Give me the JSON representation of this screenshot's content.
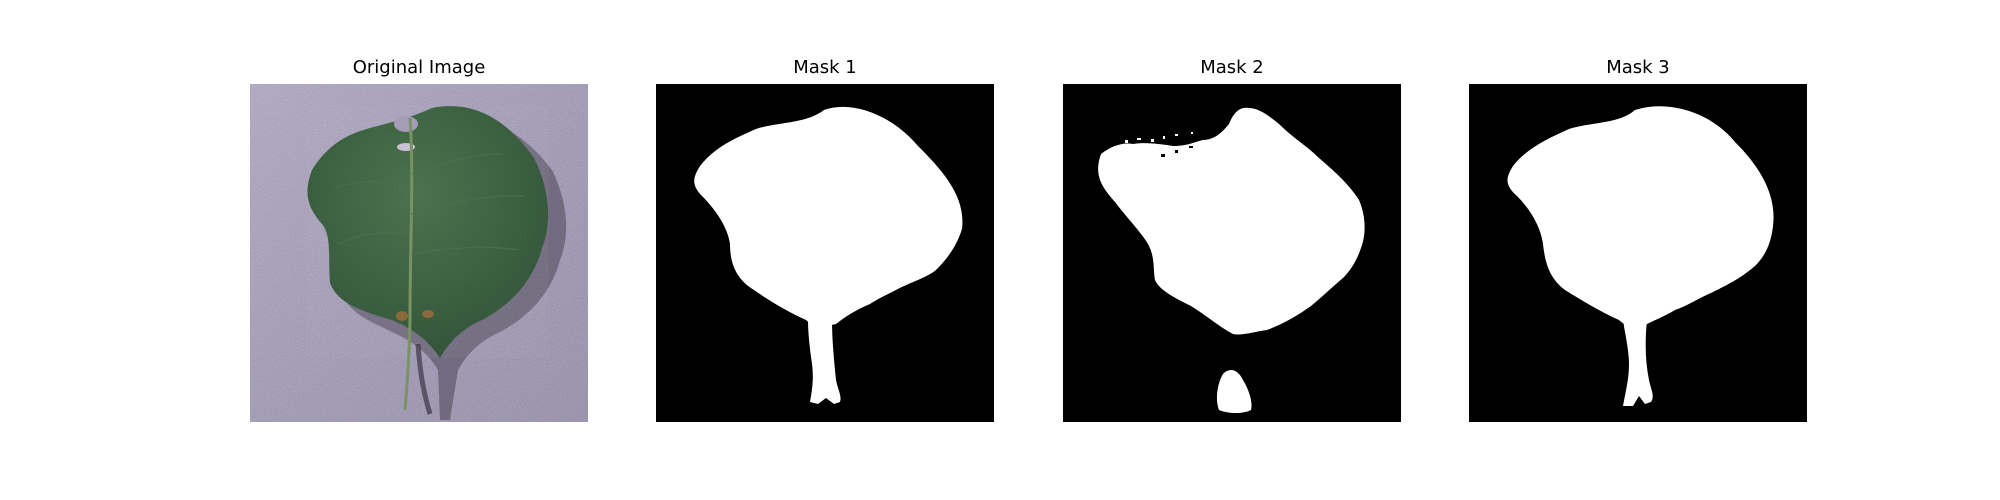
{
  "figure": {
    "panels": [
      {
        "title": "Original Image",
        "kind": "photo"
      },
      {
        "title": "Mask 1",
        "kind": "mask"
      },
      {
        "title": "Mask 2",
        "kind": "mask"
      },
      {
        "title": "Mask 3",
        "kind": "mask"
      }
    ]
  },
  "colors": {
    "background": "#ffffff",
    "mask_background": "#000000",
    "mask_foreground": "#ffffff",
    "photo_background": "#a79fba",
    "leaf_dark": "#1f4228",
    "leaf_mid": "#2f5c37",
    "leaf_light": "#5f8060",
    "stem": "#7b9364"
  }
}
